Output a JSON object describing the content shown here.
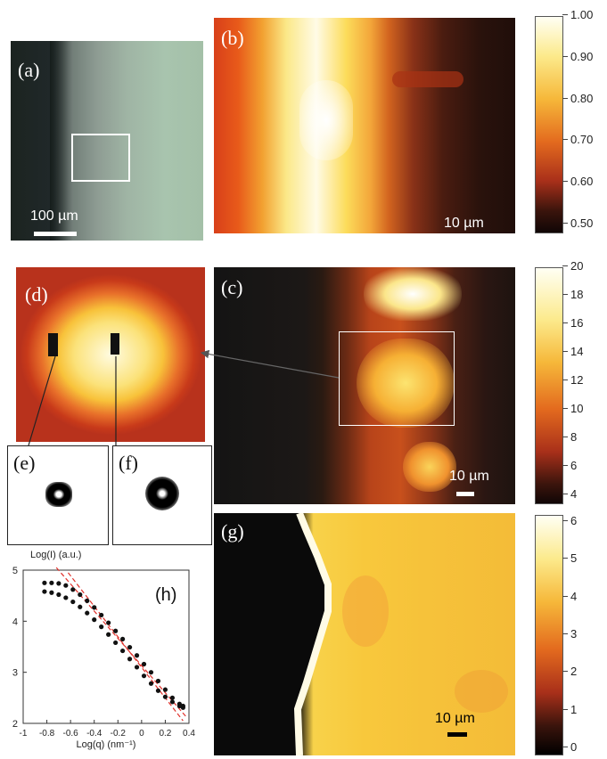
{
  "panels": {
    "a": {
      "label": "(a)",
      "scale": "100 µm"
    },
    "b": {
      "label": "(b)",
      "scale": "10 µm"
    },
    "c": {
      "label": "(c)",
      "scale": "10 µm"
    },
    "d": {
      "label": "(d)"
    },
    "e": {
      "label": "(e)"
    },
    "f": {
      "label": "(f)"
    },
    "g": {
      "label": "(g)",
      "scale": "10 µm"
    },
    "h": {
      "label": "(h)"
    }
  },
  "colorbars": {
    "b": [
      "1.00",
      "0.90",
      "0.80",
      "0.70",
      "0.60",
      "0.50"
    ],
    "c": [
      "20",
      "18",
      "16",
      "14",
      "12",
      "10",
      "8",
      "6",
      "4"
    ],
    "g": [
      "6",
      "5",
      "4",
      "3",
      "2",
      "1",
      "0"
    ]
  },
  "colors": {
    "map_dark": "#140a08",
    "map_red": "#d4401a",
    "map_orange": "#f08a1e",
    "map_yellow": "#f8d048",
    "map_white": "#fffce8",
    "fit_line": "#e0302a"
  },
  "chart_data": {
    "type": "scatter",
    "title": "",
    "ylabel": "Log(I) (a.u.)",
    "xlabel": "Log(q) (nm⁻¹)",
    "xlim": [
      -1,
      0.4
    ],
    "ylim": [
      2,
      5
    ],
    "x_ticks": [
      "-1",
      "-0.8",
      "-0.6",
      "-0.4",
      "-0.2",
      "0",
      "0.2",
      "0.4"
    ],
    "y_ticks": [
      "2",
      "3",
      "4",
      "5"
    ],
    "series": [
      {
        "x": [
          -0.82,
          -0.76,
          -0.7,
          -0.64,
          -0.58,
          -0.52,
          -0.46,
          -0.4,
          -0.34,
          -0.28,
          -0.22,
          -0.16,
          -0.1,
          -0.04,
          0.02,
          0.08,
          0.14,
          0.2,
          0.26,
          0.32,
          0.35
        ],
        "y": [
          4.75,
          4.75,
          4.74,
          4.7,
          4.62,
          4.52,
          4.4,
          4.27,
          4.12,
          3.97,
          3.81,
          3.65,
          3.49,
          3.33,
          3.16,
          3.0,
          2.83,
          2.66,
          2.5,
          2.38,
          2.34
        ]
      },
      {
        "x": [
          -0.82,
          -0.76,
          -0.7,
          -0.64,
          -0.58,
          -0.52,
          -0.46,
          -0.4,
          -0.34,
          -0.28,
          -0.22,
          -0.16,
          -0.1,
          -0.04,
          0.02,
          0.08,
          0.14,
          0.2,
          0.26,
          0.32,
          0.35
        ],
        "y": [
          4.58,
          4.56,
          4.52,
          4.46,
          4.38,
          4.28,
          4.16,
          4.03,
          3.89,
          3.74,
          3.58,
          3.42,
          3.26,
          3.1,
          2.93,
          2.78,
          2.64,
          2.52,
          2.42,
          2.34,
          2.31
        ]
      }
    ],
    "fit_lines": [
      {
        "x": [
          -0.72,
          0.38
        ],
        "y": [
          5.05,
          2.12
        ]
      },
      {
        "x": [
          -0.62,
          0.35
        ],
        "y": [
          4.95,
          2.05
        ]
      }
    ]
  }
}
